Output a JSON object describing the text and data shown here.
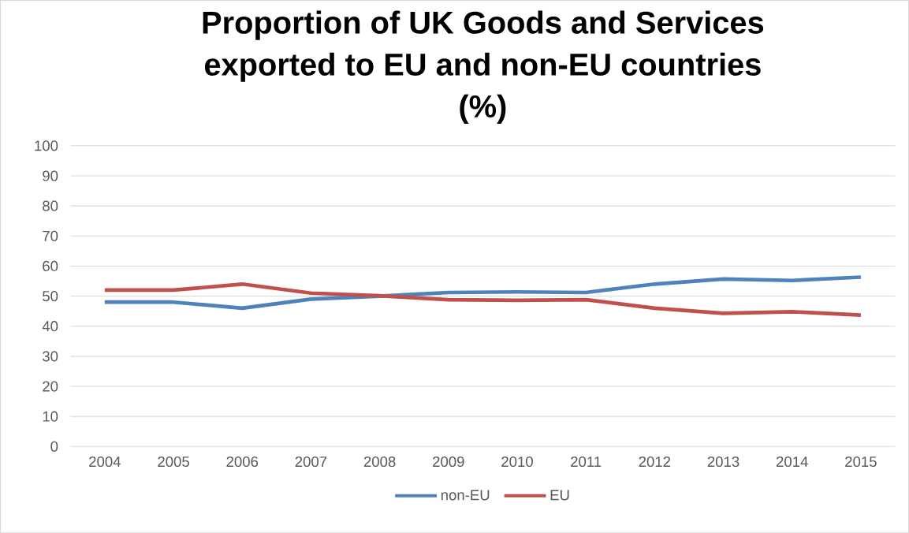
{
  "chart_data": {
    "type": "line",
    "title": "Proportion of UK Goods and Services exported to EU and non-EU countries (%)",
    "categories": [
      "2004",
      "2005",
      "2006",
      "2007",
      "2008",
      "2009",
      "2010",
      "2011",
      "2012",
      "2013",
      "2014",
      "2015"
    ],
    "series": [
      {
        "name": "non-EU",
        "color": "#4f81bd",
        "values": [
          48,
          48,
          46,
          49,
          50,
          51.2,
          51.4,
          51.2,
          54,
          55.7,
          55.2,
          56.3
        ]
      },
      {
        "name": "EU",
        "color": "#c0504d",
        "values": [
          52,
          52,
          54,
          51,
          50.1,
          48.8,
          48.6,
          48.8,
          46,
          44.3,
          44.8,
          43.7
        ]
      }
    ],
    "ylim": [
      0,
      100
    ],
    "yticks": [
      0,
      10,
      20,
      30,
      40,
      50,
      60,
      70,
      80,
      90,
      100
    ],
    "grid": "y",
    "legend": "bottom",
    "marker": "none",
    "line_style": "solid"
  }
}
